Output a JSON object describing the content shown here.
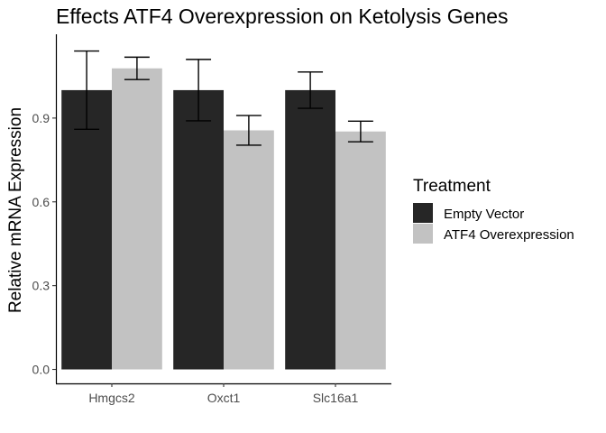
{
  "chart_data": {
    "type": "bar",
    "title": "Effects ATF4 Overexpression on Ketolysis Genes",
    "xlabel": "",
    "ylabel": "Relative mRNA Expression",
    "categories": [
      "Hmgcs2",
      "Oxct1",
      "Slc16a1"
    ],
    "series": [
      {
        "name": "Empty Vector",
        "color": "#262626",
        "values": [
          1.0,
          1.0,
          1.0
        ],
        "error_low": [
          0.86,
          0.89,
          0.935
        ],
        "error_high": [
          1.14,
          1.11,
          1.065
        ]
      },
      {
        "name": "ATF4 Overexpression",
        "color": "#c2c2c2",
        "values": [
          1.078,
          0.856,
          0.852
        ],
        "error_low": [
          1.038,
          0.803,
          0.815
        ],
        "error_high": [
          1.118,
          0.909,
          0.889
        ]
      }
    ],
    "yticks": [
      0.0,
      0.3,
      0.6,
      0.9
    ],
    "ytick_labels": [
      "0.0",
      "0.3",
      "0.6",
      "0.9"
    ],
    "ylim": [
      -0.05,
      1.2
    ],
    "grid": false,
    "legend": {
      "title": "Treatment",
      "placement": "right"
    }
  }
}
